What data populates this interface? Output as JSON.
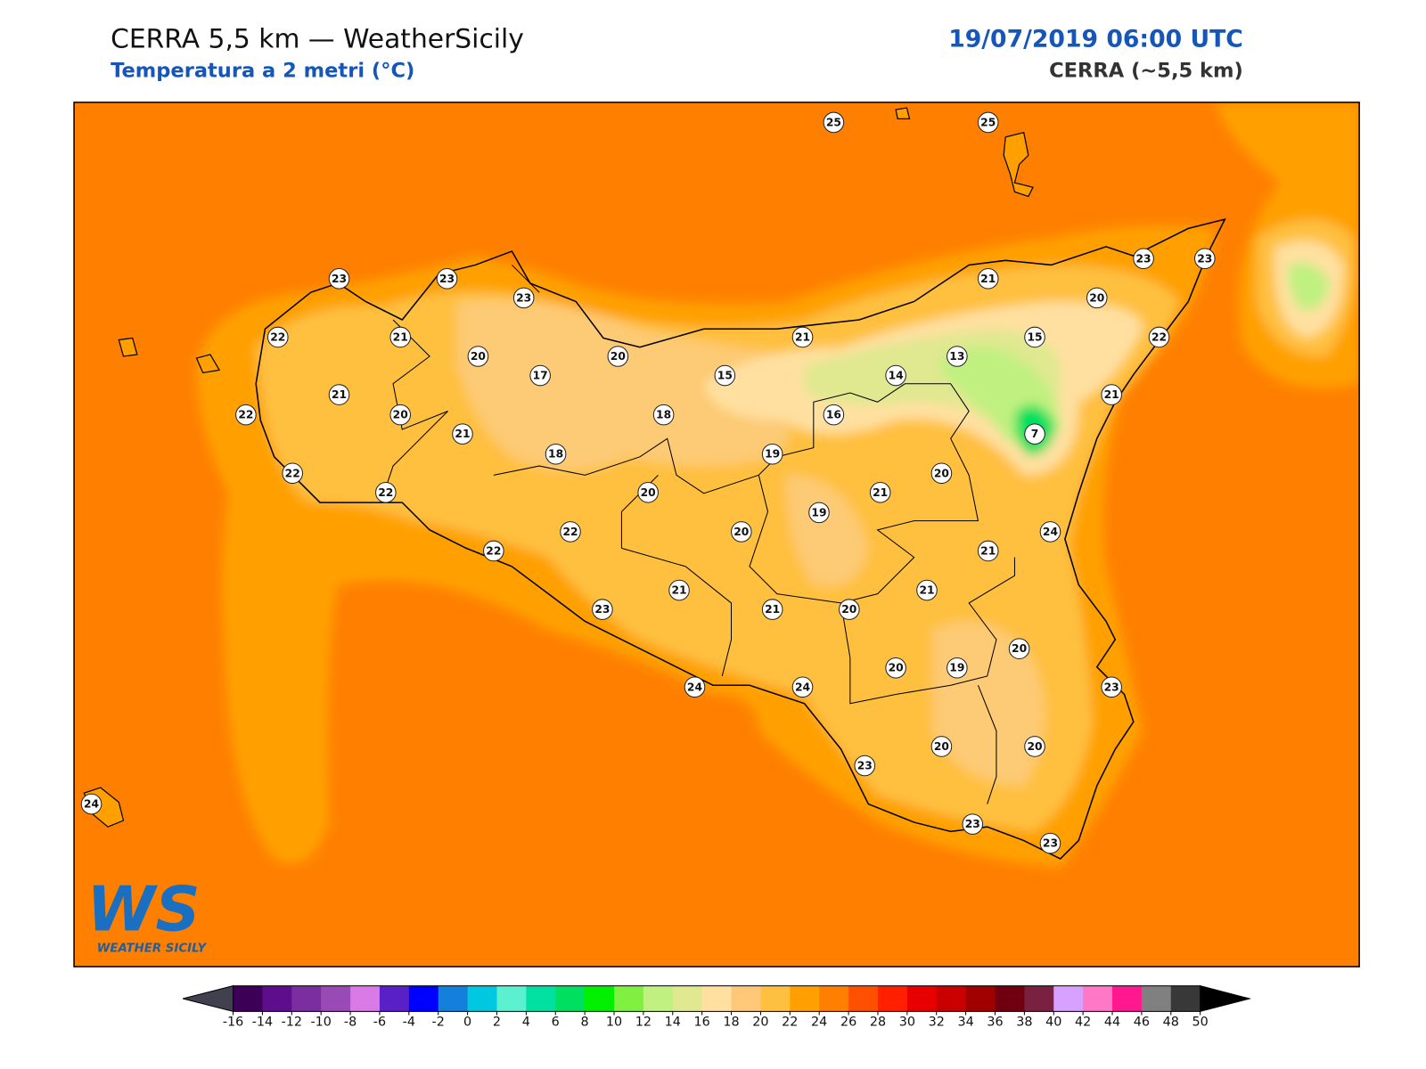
{
  "header": {
    "title": "CERRA 5,5 km — WeatherSicily",
    "subtitle": "Temperatura a 2 metri (°C)",
    "datetime": "19/07/2019 06:00 UTC",
    "model": "CERRA (~5,5 km)"
  },
  "stations": [
    25,
    25,
    23,
    23,
    23,
    21,
    23,
    23,
    20,
    22,
    21,
    21,
    15,
    22,
    20,
    20,
    13,
    17,
    15,
    14,
    21,
    21,
    22,
    20,
    18,
    16,
    21,
    7,
    18,
    19,
    22,
    20,
    22,
    20,
    21,
    19,
    20,
    22,
    24,
    22,
    21,
    21,
    21,
    23,
    21,
    20,
    20,
    20,
    19,
    24,
    24,
    23,
    23,
    20,
    20,
    23,
    23,
    24
  ],
  "colorbar": {
    "ticks": [
      -16,
      -14,
      -12,
      -10,
      -8,
      -6,
      -4,
      -2,
      0,
      2,
      4,
      6,
      8,
      10,
      12,
      14,
      16,
      18,
      20,
      22,
      24,
      26,
      28,
      30,
      32,
      34,
      36,
      38,
      40,
      42,
      44,
      46,
      48,
      50
    ],
    "colors": [
      "#3d0057",
      "#5e0e8c",
      "#7a2ea0",
      "#9a4ab5",
      "#d97ae6",
      "#5a20c8",
      "#0000ff",
      "#1580dc",
      "#00c8e0",
      "#5af0d0",
      "#00e0a0",
      "#00e060",
      "#00f000",
      "#80f040",
      "#c0f080",
      "#e0e890",
      "#ffe0a0",
      "#ffc878",
      "#ffc040",
      "#ffa000",
      "#ff8000",
      "#ff5000",
      "#ff2000",
      "#e80000",
      "#c80000",
      "#a00000",
      "#700010",
      "#7a2040",
      "#d8a0ff",
      "#ff78c8",
      "#ff1890",
      "#808080",
      "#383838"
    ],
    "under_color": "#40404f",
    "over_color": "#000000"
  },
  "logo": {
    "mark": "WS",
    "text": "WEATHER SICILY"
  }
}
